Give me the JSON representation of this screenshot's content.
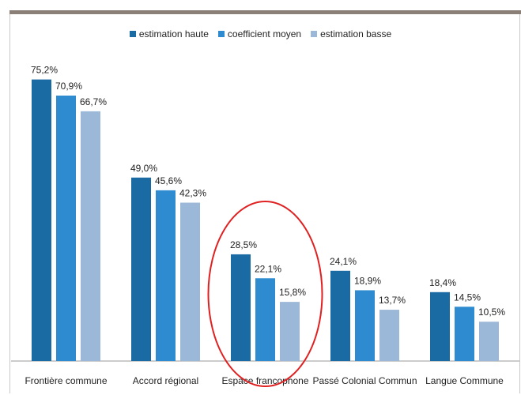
{
  "chart_data": {
    "type": "bar",
    "categories": [
      "Frontière commune",
      "Accord régional",
      "Espace francophone",
      "Passé Colonial Commun",
      "Langue Commune"
    ],
    "series": [
      {
        "name": "estimation haute",
        "color": "#1a6aa3",
        "values": [
          75.2,
          49.0,
          28.5,
          24.1,
          18.4
        ],
        "labels": [
          "75,2%",
          "49,0%",
          "28,5%",
          "24,1%",
          "18,4%"
        ]
      },
      {
        "name": "coefficient moyen",
        "color": "#2e8bd0",
        "values": [
          70.9,
          45.6,
          22.1,
          18.9,
          14.5
        ],
        "labels": [
          "70,9%",
          "45,6%",
          "22,1%",
          "18,9%",
          "14,5%"
        ]
      },
      {
        "name": "estimation basse",
        "color": "#9cb8d8",
        "values": [
          66.7,
          42.3,
          15.8,
          13.7,
          10.5
        ],
        "labels": [
          "66,7%",
          "42,3%",
          "15,8%",
          "13,7%",
          "10,5%"
        ]
      }
    ],
    "ylim": [
      0,
      80
    ],
    "grid": false,
    "legend": "top-center",
    "highlight": {
      "category": "Espace francophone",
      "shape": "ellipse",
      "color": "#e02020"
    }
  }
}
